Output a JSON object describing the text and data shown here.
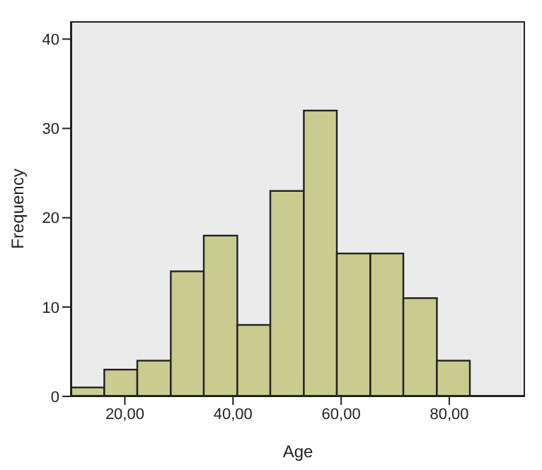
{
  "chart_data": {
    "type": "histogram",
    "xlabel": "Age",
    "ylabel": "Frequency",
    "bins": [
      10,
      16.2,
      22.3,
      28.5,
      34.6,
      40.8,
      46.9,
      53.1,
      59.2,
      65.4,
      71.5,
      77.7,
      83.8
    ],
    "values": [
      1,
      3,
      4,
      14,
      18,
      8,
      23,
      32,
      16,
      16,
      11,
      4
    ],
    "color": "#c8cc8e",
    "xlim": [
      10,
      94
    ],
    "xticks": [
      {
        "value": 20,
        "label": "20,00"
      },
      {
        "value": 40,
        "label": "40,00"
      },
      {
        "value": 60,
        "label": "60,00"
      },
      {
        "value": 80,
        "label": "80,00"
      }
    ],
    "ylim": [
      0,
      42
    ],
    "yticks": [
      0,
      10,
      20,
      30,
      40
    ]
  }
}
